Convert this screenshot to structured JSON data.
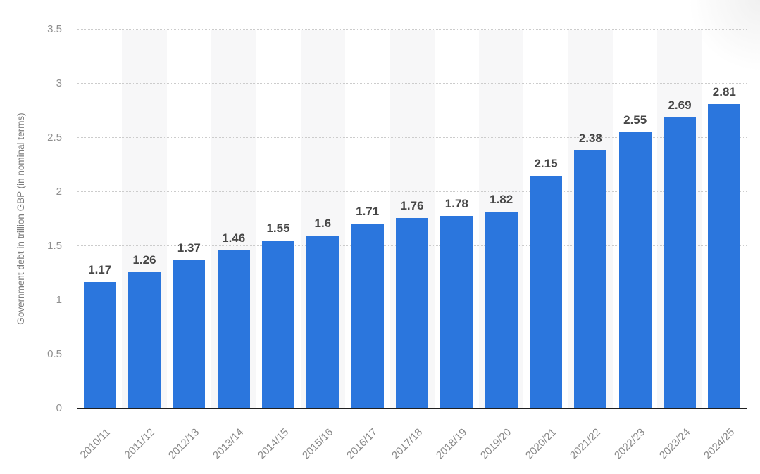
{
  "chart_data": {
    "type": "bar",
    "title": "",
    "xlabel": "",
    "ylabel": "Government debt in trillion GBP (in nominal terms)",
    "categories": [
      "2010/11",
      "2011/12",
      "2012/13",
      "2013/14",
      "2014/15",
      "2015/16",
      "2016/17",
      "2017/18",
      "2018/19",
      "2019/20",
      "2020/21",
      "2021/22",
      "2022/23",
      "2023/24",
      "2024/25"
    ],
    "values": [
      1.17,
      1.26,
      1.37,
      1.46,
      1.55,
      1.6,
      1.71,
      1.76,
      1.78,
      1.82,
      2.15,
      2.38,
      2.55,
      2.69,
      2.81
    ],
    "value_labels": [
      "1.17",
      "1.26",
      "1.37",
      "1.46",
      "1.55",
      "1.6",
      "1.71",
      "1.76",
      "1.78",
      "1.82",
      "2.15",
      "2.38",
      "2.55",
      "2.69",
      "2.81"
    ],
    "ylim": [
      0,
      3.5
    ],
    "yticks": [
      0,
      0.5,
      1,
      1.5,
      2,
      2.5,
      3,
      3.5
    ],
    "ytick_labels": [
      "0",
      "0.5",
      "1",
      "1.5",
      "2",
      "2.5",
      "3",
      "3.5"
    ],
    "legend": "none",
    "grid": "horizontal-dotted",
    "colors": {
      "bar": "#2b76dd",
      "stripe": "#f7f7f8",
      "gridline": "#cccccc",
      "axis_line": "#1f1f1f",
      "value_label": "#474747",
      "tick_label": "#8f8f8f",
      "x_tick_label": "#888888",
      "axis_title": "#7d7d7d",
      "background": "#ffffff"
    }
  }
}
